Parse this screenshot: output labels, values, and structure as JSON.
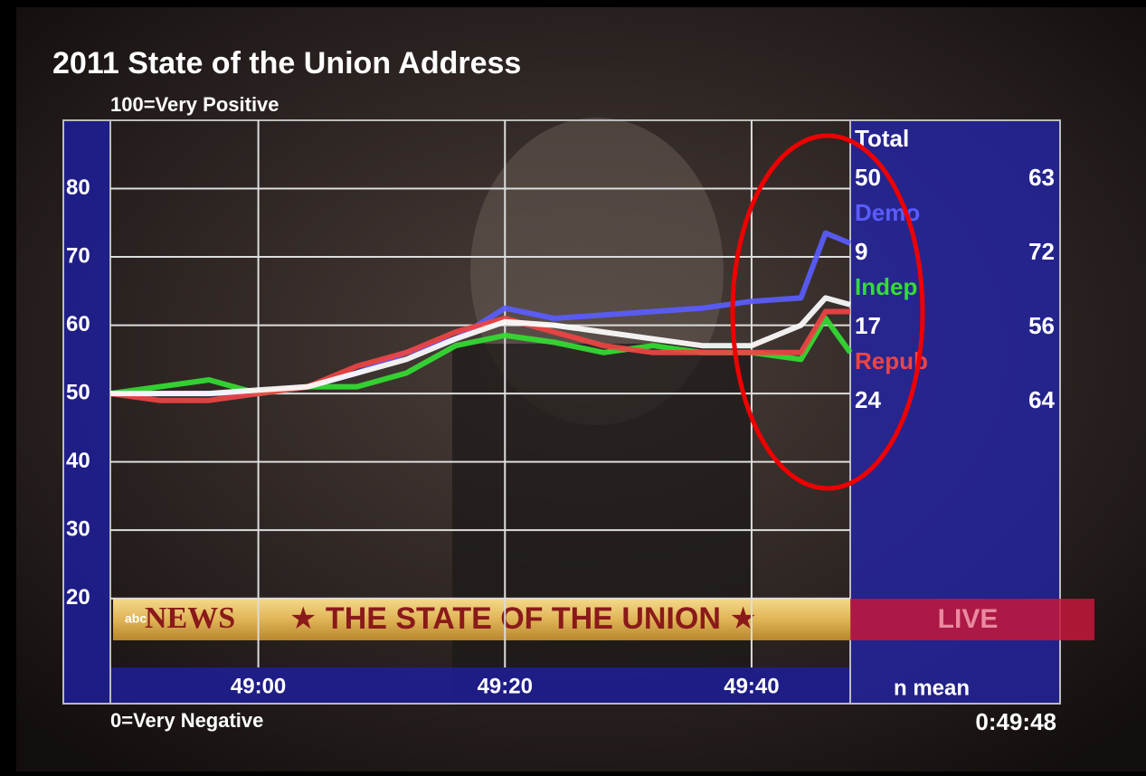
{
  "chart_data": {
    "type": "line",
    "title": "2011 State of the Union Address",
    "top_note": "100=Very Positive",
    "bottom_note": "0=Very Negative",
    "timestamp": "0:49:48",
    "summary_header": "n mean",
    "x": [
      2928,
      2932,
      2936,
      2940,
      2944,
      2948,
      2952,
      2956,
      2960,
      2964,
      2968,
      2972,
      2976,
      2980,
      2984,
      2986,
      2988
    ],
    "xlim": [
      2928,
      2988
    ],
    "xticks": [
      {
        "value": 2940,
        "label": "49:00"
      },
      {
        "value": 2960,
        "label": "49:20"
      },
      {
        "value": 2980,
        "label": "49:40"
      }
    ],
    "ylim": [
      5,
      90
    ],
    "yticks": [
      20,
      30,
      40,
      50,
      60,
      70,
      80
    ],
    "grid": true,
    "series": [
      {
        "name": "Demo",
        "color": "#5a5cff",
        "n": 9,
        "mean": 72,
        "values": [
          50,
          50,
          50,
          50,
          51,
          53,
          56,
          58,
          62.5,
          61,
          61.5,
          62,
          62.5,
          63.5,
          64,
          73.5,
          72
        ]
      },
      {
        "name": "Indep",
        "color": "#33dd33",
        "n": 17,
        "mean": 56,
        "values": [
          50,
          51,
          52,
          50,
          51,
          51,
          53,
          57,
          58.5,
          57.5,
          56,
          57,
          56,
          56,
          55,
          61,
          56
        ]
      },
      {
        "name": "Repub",
        "color": "#ee4444",
        "n": 24,
        "mean": 64,
        "values": [
          50,
          49,
          49,
          50,
          51,
          54,
          56,
          59,
          61,
          59,
          57,
          56,
          56,
          56,
          56,
          62,
          62
        ]
      },
      {
        "name": "Total",
        "color": "#ffffff",
        "n": 50,
        "mean": 63,
        "values": [
          50,
          50,
          50,
          50.5,
          51,
          53,
          55,
          58,
          60.5,
          60,
          59,
          58,
          57,
          57,
          60,
          64,
          63
        ]
      }
    ],
    "banner": {
      "logo": "abc",
      "network": "NEWS",
      "text": "★ THE STATE OF THE UNION ★",
      "live": "LIVE"
    }
  }
}
